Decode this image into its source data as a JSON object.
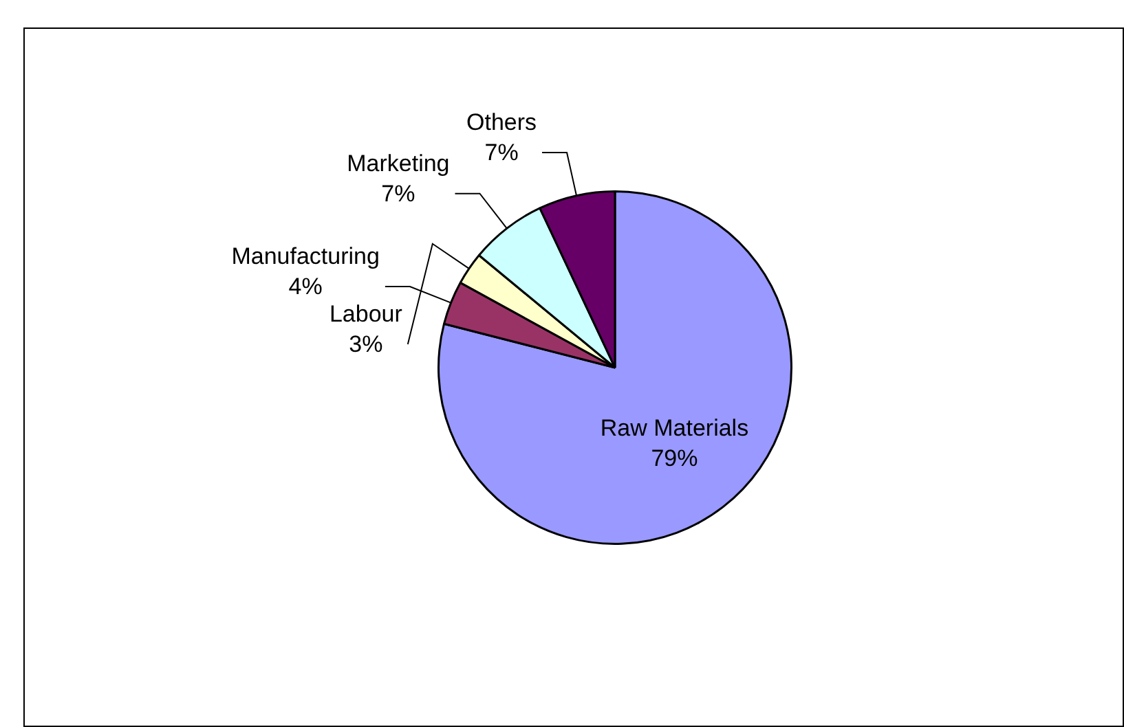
{
  "chart_data": {
    "type": "pie",
    "categories": [
      "Raw Materials",
      "Manufacturing",
      "Labour",
      "Marketing",
      "Others"
    ],
    "values": [
      79,
      4,
      3,
      7,
      7
    ],
    "value_labels": [
      "79%",
      "4%",
      "3%",
      "7%",
      "7%"
    ],
    "colors": [
      "#9999ff",
      "#993366",
      "#ffffcc",
      "#ccffff",
      "#660066"
    ],
    "legend": false
  }
}
